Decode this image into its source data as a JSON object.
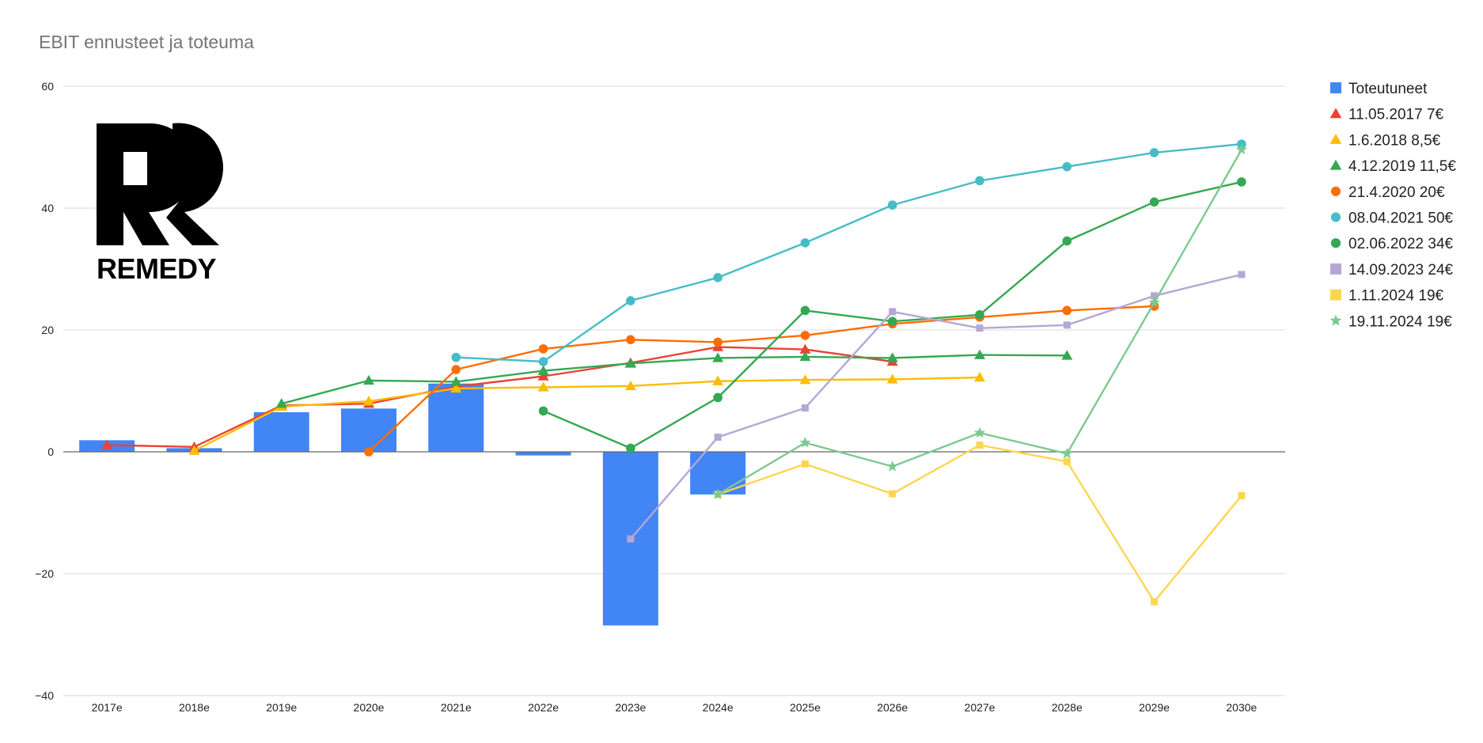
{
  "chart_data": {
    "type": "bar",
    "title": "EBIT ennusteet ja toteuma",
    "xlabel": "",
    "ylabel": "",
    "categories": [
      "2017e",
      "2018e",
      "2019e",
      "2020e",
      "2021e",
      "2022e",
      "2023e",
      "2024e",
      "2025e",
      "2026e",
      "2027e",
      "2028e",
      "2029e",
      "2030e"
    ],
    "ylim": [
      -40,
      60
    ],
    "yticks": [
      60,
      40,
      20,
      0,
      -20,
      -40
    ],
    "ytick_labels": [
      "60",
      "40",
      "20",
      "0",
      "−20",
      "−40"
    ],
    "grid": true,
    "legend_position": "right",
    "series": [
      {
        "name": "Toteutuneet",
        "kind": "bar",
        "marker": "square",
        "color": "#4285f4",
        "values": [
          1.9,
          0.6,
          6.5,
          7.1,
          11.2,
          -0.6,
          -28.5,
          -7.0,
          null,
          null,
          null,
          null,
          null,
          null
        ]
      },
      {
        "name": "11.05.2017 7€",
        "kind": "line",
        "marker": "triangle",
        "color": "#ea4335",
        "values": [
          1.1,
          0.8,
          7.6,
          7.9,
          10.7,
          12.4,
          14.6,
          17.2,
          16.8,
          14.8,
          null,
          null,
          null,
          null
        ]
      },
      {
        "name": "1.6.2018 8,5€",
        "kind": "line",
        "marker": "triangle",
        "color": "#fbbc04",
        "values": [
          null,
          0.2,
          7.4,
          8.3,
          10.4,
          10.6,
          10.8,
          11.6,
          11.8,
          11.9,
          12.2,
          null,
          null,
          null
        ]
      },
      {
        "name": "4.12.2019 11,5€",
        "kind": "line",
        "marker": "triangle",
        "color": "#34a853",
        "values": [
          null,
          null,
          7.9,
          11.7,
          11.5,
          13.3,
          14.5,
          15.4,
          15.6,
          15.4,
          15.9,
          15.8,
          null,
          null
        ]
      },
      {
        "name": "21.4.2020 20€",
        "kind": "line",
        "marker": "circle",
        "color": "#ff6d01",
        "values": [
          null,
          null,
          null,
          0.0,
          13.5,
          16.9,
          18.4,
          18.0,
          19.1,
          21.0,
          22.1,
          23.2,
          23.9,
          null
        ]
      },
      {
        "name": "08.04.2021 50€",
        "kind": "line",
        "marker": "circle",
        "color": "#46bdc6",
        "values": [
          null,
          null,
          null,
          null,
          15.5,
          14.8,
          24.8,
          28.6,
          34.3,
          40.5,
          44.5,
          46.8,
          49.1,
          50.5
        ]
      },
      {
        "name": "02.06.2022 34€",
        "kind": "line",
        "marker": "circle",
        "color": "#34a853",
        "values": [
          null,
          null,
          null,
          null,
          null,
          6.7,
          0.6,
          8.9,
          23.2,
          21.4,
          22.5,
          34.6,
          41.0,
          44.3
        ]
      },
      {
        "name": "14.09.2023 24€",
        "kind": "line",
        "marker": "square",
        "color": "#b4a7d6",
        "values": [
          null,
          null,
          null,
          null,
          null,
          null,
          -14.3,
          2.4,
          7.2,
          23.0,
          20.3,
          20.8,
          25.6,
          29.1
        ]
      },
      {
        "name": "1.11.2024 19€",
        "kind": "line",
        "marker": "square",
        "color": "#ffd54f",
        "values": [
          null,
          null,
          null,
          null,
          null,
          null,
          null,
          -7.0,
          -2.0,
          -6.9,
          1.1,
          -1.6,
          -24.6,
          -7.2
        ]
      },
      {
        "name": "19.11.2024 19€",
        "kind": "line",
        "marker": "star",
        "color": "#7bc98f",
        "values": [
          null,
          null,
          null,
          null,
          null,
          null,
          null,
          -7.0,
          1.5,
          -2.4,
          3.1,
          -0.3,
          24.5,
          49.6
        ]
      }
    ]
  },
  "logo": {
    "text": "REMEDY",
    "icon": "remedy-rr-logo-icon"
  }
}
